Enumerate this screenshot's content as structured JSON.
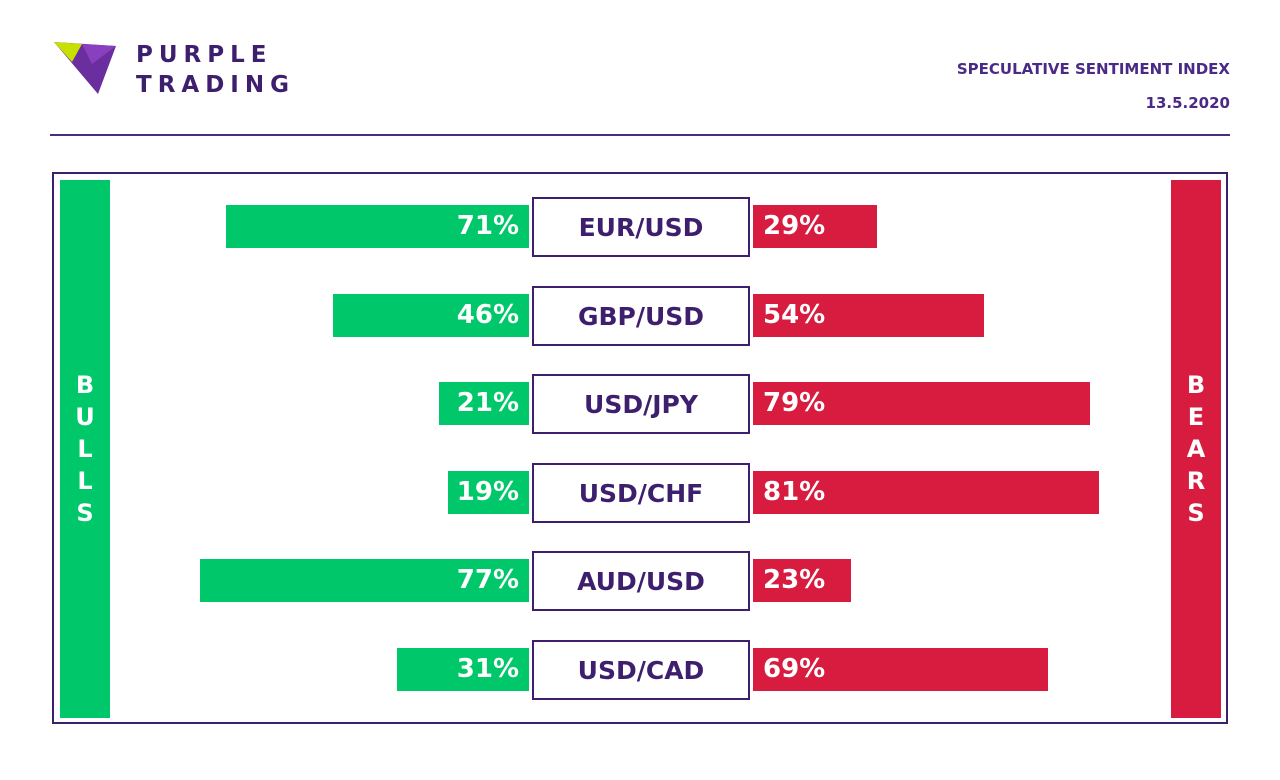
{
  "brand": {
    "line1": "PURPLE",
    "line2": "TRADING",
    "logo_icon": "purple-triangle-logo"
  },
  "header": {
    "title": "SPECULATIVE SENTIMENT INDEX",
    "date": "13.5.2020"
  },
  "sides": {
    "bulls": "BULLS",
    "bears": "BEARS"
  },
  "colors": {
    "bull": "#00c86a",
    "bear": "#d81c40",
    "brand": "#3d1f6e"
  },
  "chart_data": {
    "type": "bar",
    "categories": [
      "EUR/USD",
      "GBP/USD",
      "USD/JPY",
      "USD/CHF",
      "AUD/USD",
      "USD/CAD"
    ],
    "series": [
      {
        "name": "BULLS",
        "values": [
          71,
          46,
          21,
          19,
          77,
          31
        ],
        "labels": [
          "71%",
          "46%",
          "21%",
          "19%",
          "77%",
          "31%"
        ]
      },
      {
        "name": "BEARS",
        "values": [
          29,
          54,
          79,
          81,
          23,
          69
        ],
        "labels": [
          "29%",
          "54%",
          "79%",
          "81%",
          "23%",
          "69%"
        ]
      }
    ],
    "unit": "%",
    "xlim": [
      0,
      100
    ]
  }
}
